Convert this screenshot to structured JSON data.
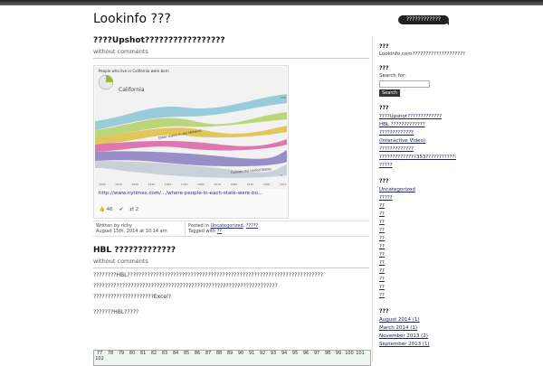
{
  "header": {
    "site_title": "Lookinfo ???",
    "pill_label": "????????????"
  },
  "post1": {
    "title": "????Upshot?????????????????",
    "meta": "without comments",
    "embed": {
      "chart_title": "People who live in California were born",
      "labels": {
        "california": "California",
        "midwest": "Other states in the Midwest",
        "outside": "Outside the United States",
        "y_top": "100",
        "y_bottom": "0"
      },
      "x_ticks": [
        "1900",
        "1910",
        "1920",
        "1930",
        "1940",
        "1950",
        "1960",
        "1970",
        "1980",
        "1990",
        "2000",
        "2012"
      ],
      "link": "http://www.nytimes.com/.../where-people-in-each-state-were-bo...",
      "likes": "46",
      "shares": "2"
    },
    "info": {
      "written_by": "Written by richy",
      "date": "August 15th, 2014 at 10:14 am",
      "posted_in": "Posted in",
      "cat1": "Uncategorized",
      "cat2": "?????",
      "tagged_with": "Tagged with",
      "tag": "??"
    }
  },
  "post2": {
    "title": "HBL ?????????????",
    "meta": "without comments",
    "p1": "????????HBL????????????????????????????????????????????????????????????????????",
    "p2": "????????????????????????????????????????????????????????????????",
    "p3": "?????????????????????Excel?",
    "p4": "???????HBL?????",
    "strip_numbers": [
      "77",
      "78",
      "79",
      "80",
      "81",
      "82",
      "83",
      "84",
      "85",
      "86",
      "87",
      "88",
      "89",
      "90",
      "91",
      "92",
      "93",
      "94",
      "95",
      "96",
      "97",
      "98",
      "99",
      "100",
      "101",
      "102"
    ]
  },
  "sidebar": {
    "about_title": "???",
    "about_text": "Lookinfo.com????????????????????",
    "search_title": "???",
    "search_label": "Search for:",
    "search_btn": "Search",
    "recent_title": "???",
    "recent": [
      "????Upshot?????????????",
      "HBL ?????????????",
      "?????????????",
      "(Interactive Video)",
      "?????????????",
      "??????????????353????????????????",
      "?????"
    ],
    "cats_title": "???",
    "cats": [
      "Uncategorized",
      "?????",
      "??",
      "??",
      "??",
      "??",
      "??",
      "??",
      "??",
      "??",
      "??",
      "??",
      "??",
      "??"
    ],
    "archives_title": "???",
    "archives": [
      "August 2014 (1)",
      "March 2014 (1)",
      "November 2013 (2)",
      "September 2013 (1)"
    ]
  },
  "colors": {
    "accent": "#336699",
    "topbar": "#222222"
  }
}
